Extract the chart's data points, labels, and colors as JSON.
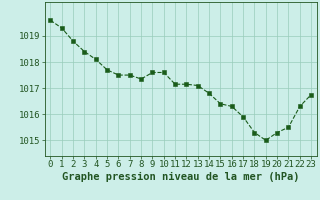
{
  "x": [
    0,
    1,
    2,
    3,
    4,
    5,
    6,
    7,
    8,
    9,
    10,
    11,
    12,
    13,
    14,
    15,
    16,
    17,
    18,
    19,
    20,
    21,
    22,
    23
  ],
  "y": [
    1019.6,
    1019.3,
    1018.8,
    1018.4,
    1018.1,
    1017.7,
    1017.5,
    1017.5,
    1017.35,
    1017.6,
    1017.6,
    1017.15,
    1017.15,
    1017.1,
    1016.8,
    1016.4,
    1016.3,
    1015.9,
    1015.3,
    1015.0,
    1015.3,
    1015.5,
    1016.3,
    1016.75
  ],
  "line_color": "#1a5c1a",
  "marker_color": "#1a5c1a",
  "bg_color": "#cceee8",
  "grid_color": "#99ccbb",
  "axis_color": "#225522",
  "xlabel": "Graphe pression niveau de la mer (hPa)",
  "xlabel_fontsize": 7.5,
  "tick_fontsize": 6.5,
  "ylim_min": 1014.4,
  "ylim_max": 1020.3,
  "ytick_labels": [
    1015,
    1016,
    1017,
    1018,
    1019
  ],
  "fig_bg_color": "#cceee8"
}
